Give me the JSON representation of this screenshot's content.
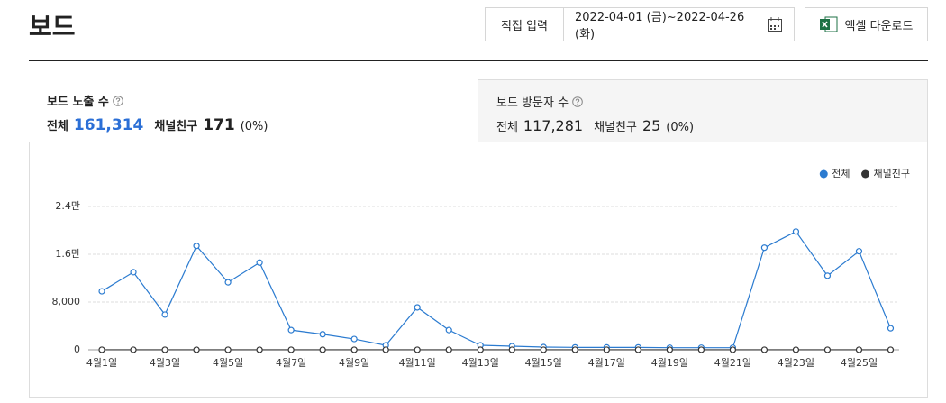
{
  "header": {
    "title": "보드",
    "date_mode_button": "직접 입력",
    "date_range": "2022-04-01 (금)~2022-04-26 (화)",
    "excel_button": "엑셀 다운로드"
  },
  "tabs": [
    {
      "label": "보드 노출 수",
      "total_label": "전체",
      "total": "161,314",
      "friend_label": "채널친구",
      "friend": "171",
      "friend_pct": "(0%)",
      "active": true
    },
    {
      "label": "보드 방문자 수",
      "total_label": "전체",
      "total": "117,281",
      "friend_label": "채널친구",
      "friend": "25",
      "friend_pct": "(0%)",
      "active": false
    }
  ],
  "chart_data": {
    "type": "line",
    "categories": [
      "4월1일",
      null,
      "4월3일",
      null,
      "4월5일",
      null,
      "4월7일",
      null,
      "4월9일",
      null,
      "4월11일",
      null,
      "4월13일",
      null,
      "4월15일",
      null,
      "4월17일",
      null,
      "4월19일",
      null,
      "4월21일",
      null,
      "4월23일",
      null,
      "4월25일",
      null
    ],
    "series": [
      {
        "name": "전체",
        "color": "#2b7bd0",
        "values": [
          9800,
          13000,
          5900,
          17400,
          11300,
          14600,
          3300,
          2600,
          1800,
          750,
          7100,
          3300,
          750,
          600,
          450,
          400,
          400,
          400,
          350,
          350,
          350,
          17100,
          19800,
          12400,
          16500,
          3600
        ]
      },
      {
        "name": "채널친구",
        "color": "#333333",
        "values": [
          7,
          7,
          7,
          7,
          7,
          7,
          7,
          7,
          7,
          7,
          7,
          7,
          7,
          7,
          7,
          7,
          7,
          7,
          7,
          7,
          7,
          7,
          7,
          7,
          7,
          7
        ]
      }
    ],
    "ylim": [
      0,
      24000
    ],
    "yticks": [
      0,
      {
        "value": 8000,
        "label": "8,000"
      },
      {
        "value": 16000,
        "label": "1.6만"
      },
      {
        "value": 24000,
        "label": "2.4만"
      }
    ],
    "grid": true,
    "legend": "top-right"
  }
}
